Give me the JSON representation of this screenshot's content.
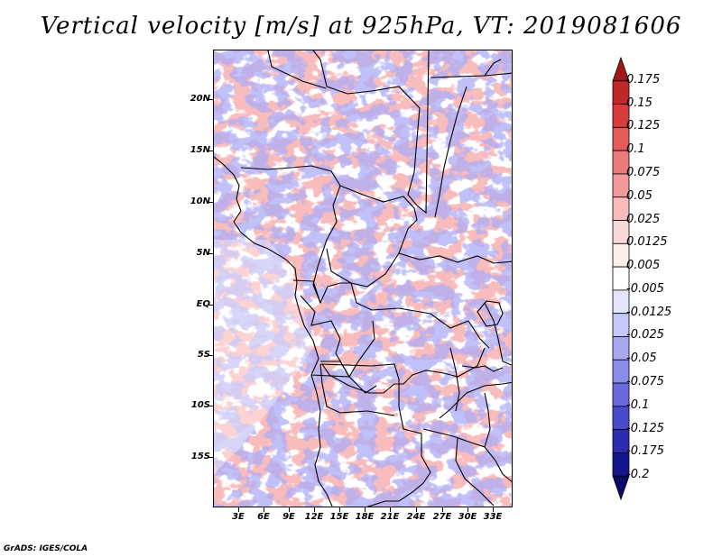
{
  "title": "Vertical velocity [m/s] at 925hPa, VT: 2019081606",
  "footer": "GrADS: IGES/COLA",
  "axes": {
    "lat_labels": [
      "20N",
      "15N",
      "10N",
      "5N",
      "EQ",
      "5S",
      "10S",
      "15S"
    ],
    "lon_labels": [
      "3E",
      "6E",
      "9E",
      "12E",
      "15E",
      "18E",
      "21E",
      "24E",
      "27E",
      "30E",
      "33E"
    ]
  },
  "colorbar": {
    "levels": [
      "0.175",
      "0.15",
      "0.125",
      "0.1",
      "0.075",
      "0.05",
      "0.025",
      "0.0125",
      "0.005",
      "-0.005",
      "-0.0125",
      "-0.025",
      "-0.05",
      "-0.075",
      "-0.1",
      "-0.125",
      "-0.175",
      "-0.2"
    ],
    "colors": [
      "#a01818",
      "#c02828",
      "#d83c3c",
      "#e45a5a",
      "#ec7a7a",
      "#f29a9a",
      "#f8bcbc",
      "#fbd8d8",
      "#fdeeee",
      "#ffffff",
      "#e4e4fb",
      "#c8c8f6",
      "#a8a8f0",
      "#8a8ae8",
      "#6a6adc",
      "#4a4acc",
      "#2c2cb0",
      "#16168c",
      "#0a0a6a"
    ]
  }
}
